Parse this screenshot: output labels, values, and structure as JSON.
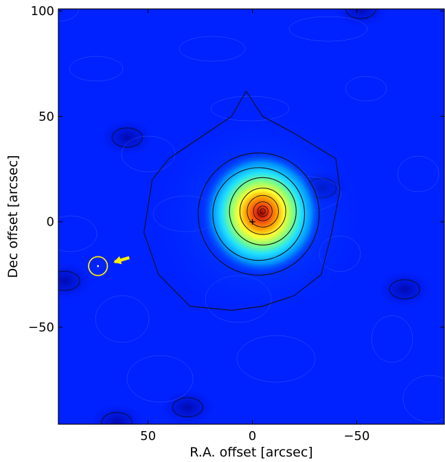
{
  "chart_data": {
    "type": "heatmap",
    "title": "",
    "xlabel": "R.A. offset [arcsec]",
    "ylabel": "Dec offset [arcsec]",
    "xlim": [
      93,
      -92
    ],
    "ylim": [
      -96,
      101
    ],
    "x_inverted": true,
    "x_ticks": [
      50,
      0,
      -50
    ],
    "x_tick_labels": [
      "50",
      "0",
      "−50"
    ],
    "y_ticks": [
      -50,
      0,
      50,
      100
    ],
    "y_tick_labels": [
      "−50",
      "0",
      "50",
      "100"
    ],
    "colormap": "jet",
    "background_color": "#0022ff",
    "peak": {
      "x": -5,
      "y": 5
    },
    "center_marker": {
      "x": 0,
      "y": 0,
      "symbol": "cross"
    },
    "highlight_circle": {
      "x": 74,
      "y": -21,
      "radius": 4.5,
      "color": "#ffee00"
    },
    "arrow": {
      "from_x": 59,
      "from_y": -17,
      "to_x": 66,
      "to_y": -19,
      "color": "#ffee00"
    },
    "minor_features": [
      {
        "x": 60,
        "y": 40,
        "type": "hole"
      },
      {
        "x": -33,
        "y": 16,
        "type": "hole"
      },
      {
        "x": -73,
        "y": -32,
        "type": "hole"
      },
      {
        "x": -52,
        "y": 101,
        "type": "hole"
      },
      {
        "x": 65,
        "y": -95,
        "type": "hole"
      },
      {
        "x": 31,
        "y": -88,
        "type": "hole"
      },
      {
        "x": 90,
        "y": -28,
        "type": "hole"
      }
    ]
  }
}
